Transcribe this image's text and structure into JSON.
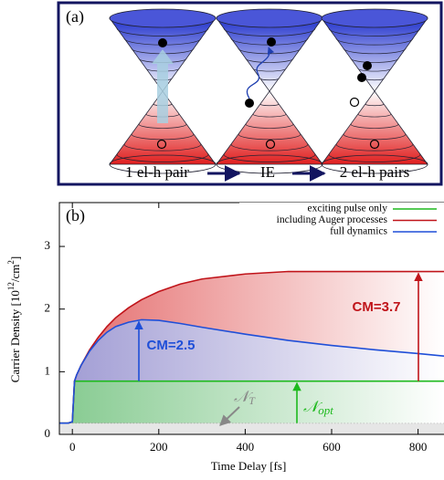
{
  "panel_a": {
    "label": "(a)",
    "captions": [
      "1 el-h pair",
      "IE",
      "2 el-h pairs"
    ]
  },
  "chart_data": {
    "type": "line",
    "label": "(b)",
    "xlabel": "Time Delay  [fs]",
    "ylabel": {
      "text": "Carrier Density  [10",
      "sup1": "12",
      "mid": "/cm",
      "sup2": "2",
      "end": "]"
    },
    "x": [
      -30,
      -10,
      0,
      5,
      10,
      20,
      40,
      60,
      80,
      100,
      130,
      160,
      200,
      250,
      300,
      400,
      500,
      600,
      700,
      800,
      860
    ],
    "series": [
      {
        "name": "exciting pulse only",
        "color": "#1db91d",
        "values": [
          0.18,
          0.18,
          0.2,
          0.85,
          0.85,
          0.85,
          0.85,
          0.85,
          0.85,
          0.85,
          0.85,
          0.85,
          0.85,
          0.85,
          0.85,
          0.85,
          0.85,
          0.85,
          0.85,
          0.85,
          0.85
        ]
      },
      {
        "name": "including Auger processes",
        "color": "#c0141a",
        "values": [
          0.18,
          0.18,
          0.2,
          0.85,
          0.95,
          1.1,
          1.35,
          1.55,
          1.72,
          1.86,
          2.02,
          2.15,
          2.28,
          2.4,
          2.48,
          2.56,
          2.6,
          2.6,
          2.6,
          2.6,
          2.6
        ]
      },
      {
        "name": "full dynamics",
        "color": "#1f4fd8",
        "values": [
          0.18,
          0.18,
          0.2,
          0.85,
          0.95,
          1.1,
          1.33,
          1.5,
          1.63,
          1.72,
          1.79,
          1.83,
          1.82,
          1.77,
          1.71,
          1.6,
          1.5,
          1.42,
          1.35,
          1.29,
          1.25
        ]
      }
    ],
    "threshold": {
      "symbol": "𝒩",
      "subscript": "T",
      "value": 0.18
    },
    "annotations": [
      {
        "text": "CM=3.7",
        "color": "#c0141a"
      },
      {
        "text": "CM=2.5",
        "color": "#1f4fd8"
      },
      {
        "symbol": "𝒩",
        "subscript": "opt",
        "color": "#1db91d"
      }
    ],
    "xlim": [
      -30,
      860
    ],
    "ylim": [
      0,
      3.7
    ],
    "xticks": [
      0,
      200,
      400,
      600,
      800
    ],
    "yticks": [
      0,
      1,
      2,
      3
    ]
  }
}
